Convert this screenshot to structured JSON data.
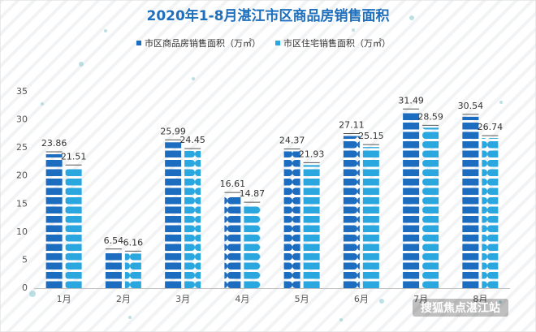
{
  "chart_data": {
    "type": "bar",
    "title": "2020年1-8月湛江市区商品房销售面积",
    "categories": [
      "1月",
      "2月",
      "3月",
      "4月",
      "5月",
      "6月",
      "7月",
      "8月"
    ],
    "series": [
      {
        "name": "市区商品房销售面积（万㎡）",
        "color": "#1c6cc0",
        "values": [
          23.86,
          6.54,
          25.99,
          16.61,
          24.37,
          27.11,
          31.49,
          30.54
        ]
      },
      {
        "name": "市区住宅销售面积（万㎡）",
        "color": "#2ba7df",
        "values": [
          21.51,
          6.16,
          24.45,
          14.87,
          21.93,
          25.15,
          28.59,
          26.74
        ]
      }
    ],
    "ylim": [
      0,
      35
    ],
    "yticks": [
      0,
      5,
      10,
      15,
      20,
      25,
      30,
      35
    ],
    "grid": false,
    "watermark": "搜狐焦点湛江站"
  }
}
